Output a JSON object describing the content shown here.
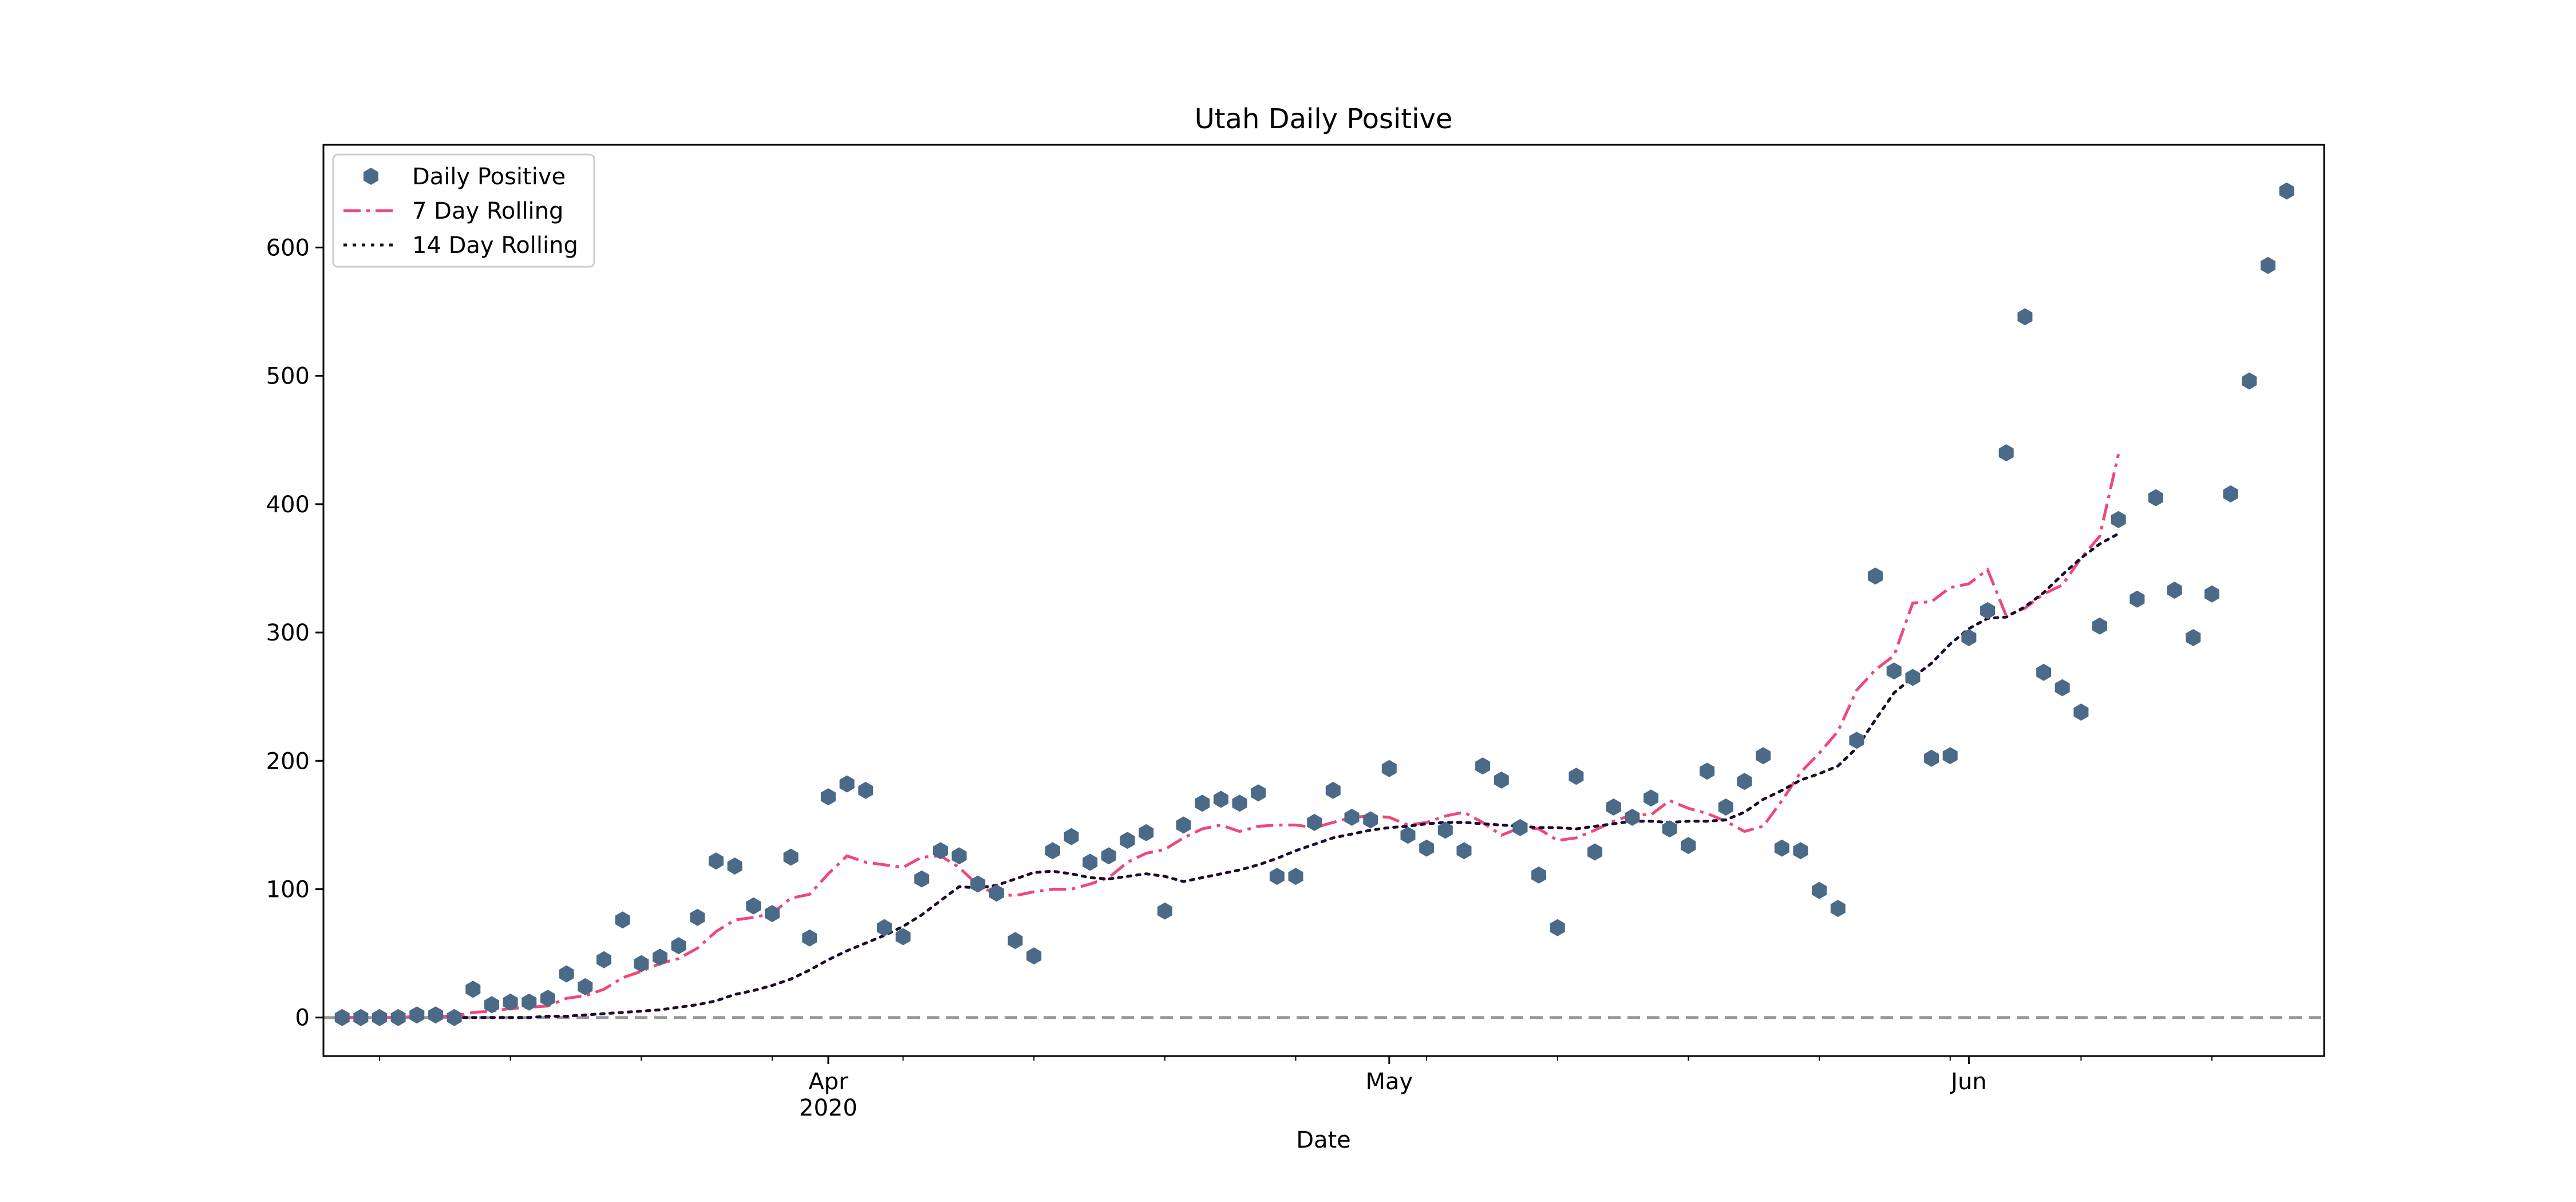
{
  "chart_data": {
    "type": "scatter",
    "title": "Utah Daily Positive",
    "xlabel": "Date",
    "ylabel": "",
    "start_date": "2020-03-06",
    "x_dates_range": [
      "2020-03-05",
      "2020-06-20"
    ],
    "ylim": [
      -30,
      680
    ],
    "y_ticks": [
      0,
      100,
      200,
      300,
      400,
      500,
      600
    ],
    "x_major_ticks": [
      {
        "date": "2020-04-01",
        "label": "Apr",
        "sublabel": "2020"
      },
      {
        "date": "2020-05-01",
        "label": "May",
        "sublabel": ""
      },
      {
        "date": "2020-06-01",
        "label": "Jun",
        "sublabel": ""
      }
    ],
    "x_minor_tick_dates": [
      "2020-03-08",
      "2020-03-15",
      "2020-03-22",
      "2020-03-29",
      "2020-04-05",
      "2020-04-12",
      "2020-04-19",
      "2020-04-26",
      "2020-05-03",
      "2020-05-10",
      "2020-05-17",
      "2020-05-24",
      "2020-05-31",
      "2020-06-07",
      "2020-06-14"
    ],
    "zero_line": {
      "y": 0,
      "color": "#999999",
      "style": "dashed"
    },
    "legend": {
      "position": "top-left"
    },
    "series": [
      {
        "name": "Daily Positive",
        "kind": "scatter",
        "marker": "hexagon",
        "color": "#4a6a88",
        "values": [
          0,
          0,
          0,
          0,
          2,
          2,
          0,
          22,
          10,
          12,
          12,
          15,
          34,
          24,
          45,
          76,
          42,
          47,
          56,
          78,
          122,
          118,
          87,
          81,
          125,
          62,
          172,
          182,
          177,
          70,
          63,
          108,
          130,
          126,
          104,
          97,
          60,
          48,
          130,
          141,
          121,
          126,
          138,
          144,
          83,
          150,
          167,
          170,
          167,
          175,
          110,
          110,
          152,
          177,
          156,
          154,
          194,
          142,
          132,
          146,
          130,
          196,
          185,
          148,
          111,
          70,
          188,
          129,
          164,
          156,
          171,
          147,
          134,
          192,
          164,
          184,
          204,
          132,
          130,
          99,
          85,
          216,
          344,
          270,
          265,
          202,
          204,
          296,
          317,
          440,
          546,
          269,
          257,
          238,
          305,
          388,
          326,
          405,
          333,
          296,
          330,
          408,
          496,
          586,
          644
        ]
      },
      {
        "name": "7 Day Rolling",
        "kind": "line",
        "style": "dashdot",
        "color": "#f0477a",
        "values": [
          0,
          0,
          0,
          0,
          1,
          1,
          1,
          4,
          5,
          7,
          8,
          9,
          15,
          17,
          22,
          31,
          36,
          42,
          46,
          54,
          67,
          76,
          78,
          81,
          93,
          96,
          112,
          126,
          121,
          119,
          117,
          125,
          126,
          117,
          103,
          96,
          95,
          98,
          100,
          100,
          104,
          109,
          121,
          128,
          131,
          140,
          147,
          150,
          145,
          149,
          150,
          150,
          148,
          152,
          156,
          157,
          156,
          150,
          152,
          157,
          160,
          152,
          142,
          148,
          147,
          138,
          140,
          146,
          153,
          158,
          158,
          169,
          163,
          159,
          153,
          145,
          149,
          169,
          191,
          206,
          223,
          255,
          271,
          282,
          323,
          324,
          335,
          338,
          349,
          313,
          319,
          330,
          337,
          358,
          375,
          439
        ],
        "start_index": 0
      },
      {
        "name": "14 Day Rolling",
        "kind": "line",
        "style": "dotted",
        "color": "#1f0a2e",
        "values": [
          0,
          0,
          0,
          0,
          0,
          1,
          1,
          2,
          3,
          4,
          5,
          6,
          8,
          10,
          13,
          18,
          21,
          25,
          30,
          37,
          45,
          52,
          58,
          64,
          71,
          80,
          91,
          102,
          101,
          103,
          108,
          113,
          114,
          112,
          109,
          108,
          110,
          112,
          110,
          106,
          109,
          112,
          115,
          119,
          124,
          130,
          135,
          140,
          143,
          146,
          148,
          149,
          151,
          152,
          152,
          151,
          150,
          149,
          148,
          148,
          147,
          149,
          151,
          153,
          153,
          152,
          153,
          153,
          154,
          160,
          170,
          177,
          185,
          190,
          196,
          210,
          232,
          253,
          265,
          276,
          291,
          303,
          311,
          312,
          320,
          331,
          345,
          358,
          369,
          377
        ],
        "start_index": 6
      }
    ]
  }
}
